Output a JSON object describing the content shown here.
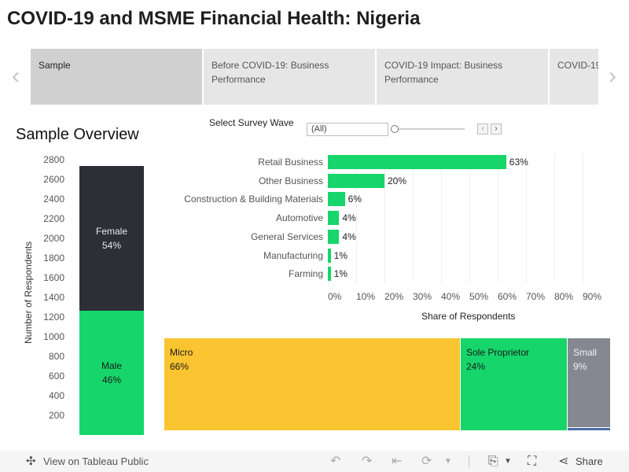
{
  "title": "COVID-19 and MSME Financial Health: Nigeria",
  "story_tabs": [
    {
      "label": "Sample",
      "active": true
    },
    {
      "label": "Before COVID-19: Business Performance",
      "active": false
    },
    {
      "label": "COVID-19 Impact: Business Performance",
      "active": false
    },
    {
      "label": "COVID-19",
      "active": false
    }
  ],
  "nav": {
    "prev_icon": "‹",
    "next_icon": "›"
  },
  "section_title": "Sample Overview",
  "filter": {
    "label": "Select Survey Wave",
    "value": "(All)",
    "prev_icon": "‹",
    "next_icon": "›"
  },
  "colors": {
    "green": "#16d66b",
    "dark": "#2c2f36",
    "yellow": "#fbc531",
    "gray": "#858891",
    "blue": "#4a6fa5"
  },
  "chart_data": [
    {
      "type": "bar",
      "stacked": true,
      "ylabel": "Number of Respondents",
      "ylim": [
        0,
        2800
      ],
      "yticks": [
        200,
        400,
        600,
        800,
        1000,
        1200,
        1400,
        1600,
        1800,
        2000,
        2200,
        2400,
        2600,
        2800
      ],
      "series": [
        {
          "name": "Male",
          "label": "46%",
          "value": 1265
        },
        {
          "name": "Female",
          "label": "54%",
          "value": 1470
        }
      ]
    },
    {
      "type": "bar",
      "orientation": "horizontal",
      "xlabel": "Share of Respondents",
      "xticks": [
        "0%",
        "10%",
        "20%",
        "30%",
        "40%",
        "50%",
        "60%",
        "70%",
        "80%",
        "90%"
      ],
      "xlim": [
        0,
        100
      ],
      "categories": [
        "Retail Business",
        "Other Business",
        "Construction & Building Materials",
        "Automotive",
        "General Services",
        "Manufacturing",
        "Farming"
      ],
      "values": [
        63,
        20,
        6,
        4,
        4,
        1,
        1
      ],
      "labels": [
        "63%",
        "20%",
        "6%",
        "4%",
        "4%",
        "1%",
        "1%"
      ]
    },
    {
      "type": "treemap",
      "items": [
        {
          "name": "Micro",
          "label": "66%",
          "value": 66,
          "color": "#fbc531"
        },
        {
          "name": "Sole Proprietor",
          "label": "24%",
          "value": 24,
          "color": "#16d66b"
        },
        {
          "name": "Small",
          "label": "9%",
          "value": 9,
          "color": "#858891"
        },
        {
          "name": "",
          "label": "",
          "value": 1,
          "color": "#4a6fa5"
        }
      ]
    }
  ],
  "toolbar": {
    "view_label": "View on Tableau Public",
    "share_label": "Share",
    "icons": [
      "tableau-logo-icon",
      "undo-icon",
      "redo-icon",
      "revert-icon",
      "refresh-icon",
      "download-icon",
      "fullscreen-icon",
      "share-icon"
    ]
  }
}
